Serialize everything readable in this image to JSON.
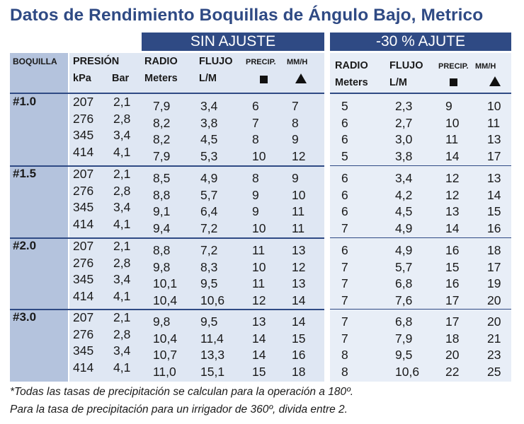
{
  "title": "Datos de Rendimiento Boquillas de Ángulo Bajo, Metrico",
  "sections": {
    "sin_ajuste": "SIN AJUSTE",
    "ajuste": "-30 % AJUTE"
  },
  "headers": {
    "boquilla": "BOQUILLA",
    "presion": "PRESIÓN",
    "kpa": "kPa",
    "bar": "Bar",
    "radio": "RADIO",
    "meters": "Meters",
    "flujo": "FLUJO",
    "lm": "L/M",
    "precip": "PRECIP.",
    "mmh": "MM/H"
  },
  "symbols": {
    "square": "square",
    "triangle": "triangle"
  },
  "groups": [
    {
      "nozzle": "#1.0",
      "rows": [
        {
          "kpa": "207",
          "bar": "2,1",
          "radio": "7,9",
          "flujo": "3,4",
          "p_sq": "6",
          "p_tri": "7",
          "a_radio": "5",
          "a_flujo": "2,3",
          "a_sq": "9",
          "a_tri": "10"
        },
        {
          "kpa": "276",
          "bar": "2,8",
          "radio": "8,2",
          "flujo": "3,8",
          "p_sq": "7",
          "p_tri": "8",
          "a_radio": "6",
          "a_flujo": "2,7",
          "a_sq": "10",
          "a_tri": "11"
        },
        {
          "kpa": "345",
          "bar": "3,4",
          "radio": "8,2",
          "flujo": "4,5",
          "p_sq": "8",
          "p_tri": "9",
          "a_radio": "6",
          "a_flujo": "3,0",
          "a_sq": "11",
          "a_tri": "13"
        },
        {
          "kpa": "414",
          "bar": "4,1",
          "radio": "7,9",
          "flujo": "5,3",
          "p_sq": "10",
          "p_tri": "12",
          "a_radio": "5",
          "a_flujo": "3,8",
          "a_sq": "14",
          "a_tri": "17"
        }
      ]
    },
    {
      "nozzle": "#1.5",
      "rows": [
        {
          "kpa": "207",
          "bar": "2,1",
          "radio": "8,5",
          "flujo": "4,9",
          "p_sq": "8",
          "p_tri": "9",
          "a_radio": "6",
          "a_flujo": "3,4",
          "a_sq": "12",
          "a_tri": "13"
        },
        {
          "kpa": "276",
          "bar": "2,8",
          "radio": "8,8",
          "flujo": "5,7",
          "p_sq": "9",
          "p_tri": "10",
          "a_radio": "6",
          "a_flujo": "4,2",
          "a_sq": "12",
          "a_tri": "14"
        },
        {
          "kpa": "345",
          "bar": "3,4",
          "radio": "9,1",
          "flujo": "6,4",
          "p_sq": "9",
          "p_tri": "11",
          "a_radio": "6",
          "a_flujo": "4,5",
          "a_sq": "13",
          "a_tri": "15"
        },
        {
          "kpa": "414",
          "bar": "4,1",
          "radio": "9,4",
          "flujo": "7,2",
          "p_sq": "10",
          "p_tri": "11",
          "a_radio": "7",
          "a_flujo": "4,9",
          "a_sq": "14",
          "a_tri": "16"
        }
      ]
    },
    {
      "nozzle": "#2.0",
      "rows": [
        {
          "kpa": "207",
          "bar": "2,1",
          "radio": "8,8",
          "flujo": "7,2",
          "p_sq": "11",
          "p_tri": "13",
          "a_radio": "6",
          "a_flujo": "4,9",
          "a_sq": "16",
          "a_tri": "18"
        },
        {
          "kpa": "276",
          "bar": "2,8",
          "radio": "9,8",
          "flujo": "8,3",
          "p_sq": "10",
          "p_tri": "12",
          "a_radio": "7",
          "a_flujo": "5,7",
          "a_sq": "15",
          "a_tri": "17"
        },
        {
          "kpa": "345",
          "bar": "3,4",
          "radio": "10,1",
          "flujo": "9,5",
          "p_sq": "11",
          "p_tri": "13",
          "a_radio": "7",
          "a_flujo": "6,8",
          "a_sq": "16",
          "a_tri": "19"
        },
        {
          "kpa": "414",
          "bar": "4,1",
          "radio": "10,4",
          "flujo": "10,6",
          "p_sq": "12",
          "p_tri": "14",
          "a_radio": "7",
          "a_flujo": "7,6",
          "a_sq": "17",
          "a_tri": "20"
        }
      ]
    },
    {
      "nozzle": "#3.0",
      "rows": [
        {
          "kpa": "207",
          "bar": "2,1",
          "radio": "9,8",
          "flujo": "9,5",
          "p_sq": "13",
          "p_tri": "14",
          "a_radio": "7",
          "a_flujo": "6,8",
          "a_sq": "17",
          "a_tri": "20"
        },
        {
          "kpa": "276",
          "bar": "2,8",
          "radio": "10,4",
          "flujo": "11,4",
          "p_sq": "14",
          "p_tri": "15",
          "a_radio": "7",
          "a_flujo": "7,9",
          "a_sq": "18",
          "a_tri": "21"
        },
        {
          "kpa": "345",
          "bar": "3,4",
          "radio": "10,7",
          "flujo": "13,3",
          "p_sq": "14",
          "p_tri": "16",
          "a_radio": "8",
          "a_flujo": "9,5",
          "a_sq": "20",
          "a_tri": "23"
        },
        {
          "kpa": "414",
          "bar": "4,1",
          "radio": "11,0",
          "flujo": "15,1",
          "p_sq": "15",
          "p_tri": "18",
          "a_radio": "8",
          "a_flujo": "10,6",
          "a_sq": "22",
          "a_tri": "25"
        }
      ]
    }
  ],
  "footnotes": [
    "*Todas las tasas de precipitación se calculan para la operación a 180º.",
    "Para la tasa de precipitación para un irrigador de 360º, divida entre 2."
  ],
  "colors": {
    "header_blue": "#2f4a84",
    "boquilla_col": "#b4c3dd",
    "left_light": "#dfe7f3",
    "right_light": "#e8eef7"
  }
}
